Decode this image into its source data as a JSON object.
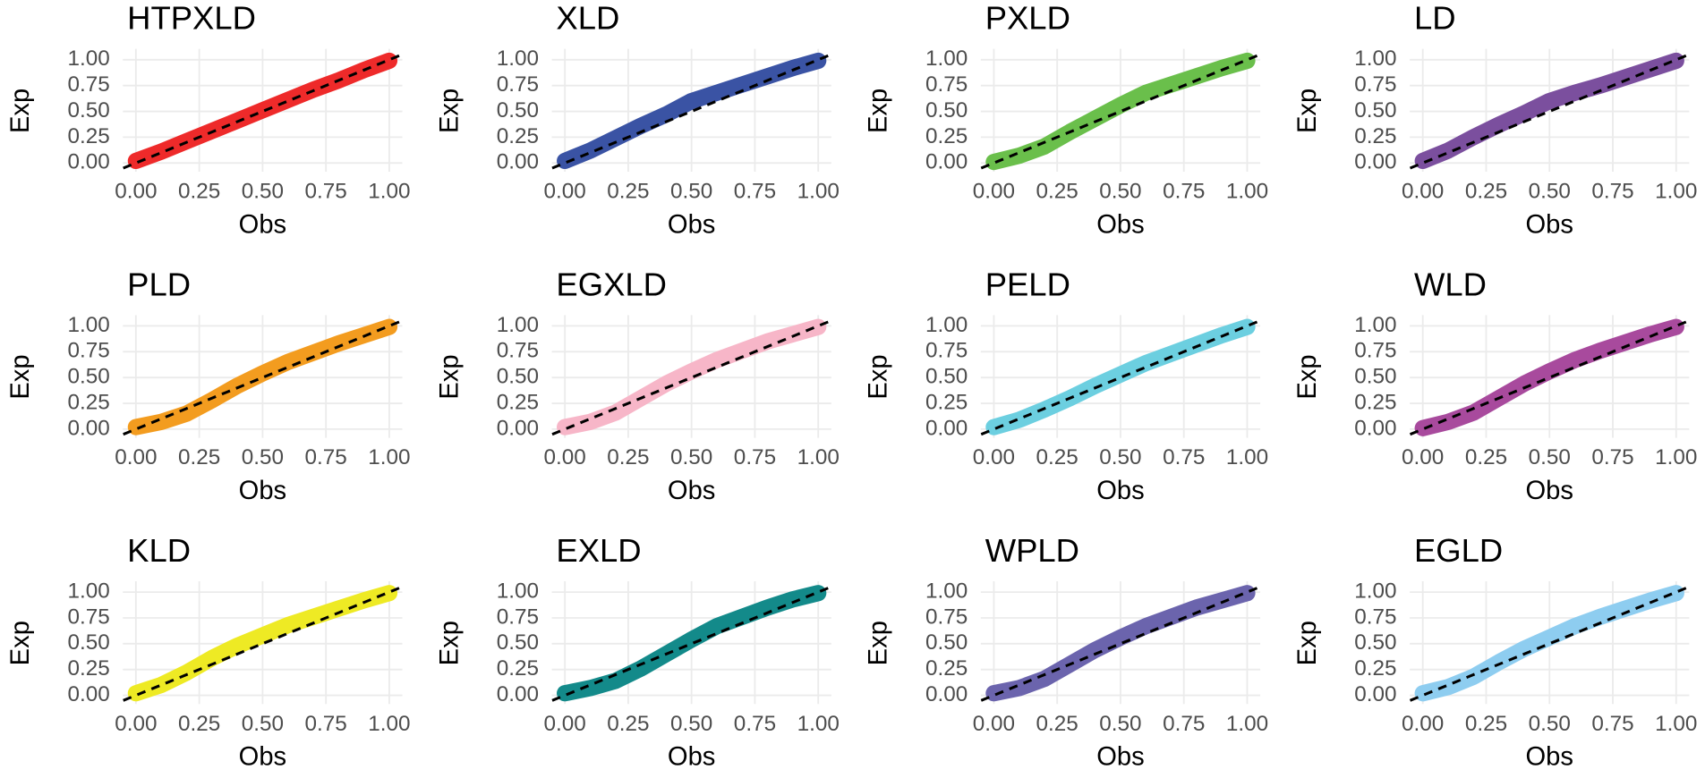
{
  "chart_data": [
    {
      "type": "line",
      "title": "HTPXLD",
      "x_label": "Obs",
      "y_label": "Exp",
      "color": "#ee2a2a",
      "x": [
        0,
        0.1,
        0.2,
        0.3,
        0.4,
        0.5,
        0.6,
        0.7,
        0.8,
        0.9,
        1
      ],
      "values": [
        0.02,
        0.11,
        0.21,
        0.31,
        0.41,
        0.51,
        0.61,
        0.71,
        0.8,
        0.9,
        0.99
      ],
      "xlim": [
        0,
        1
      ],
      "ylim": [
        0,
        1
      ],
      "xticks": [
        {
          "value": 0,
          "label": "0.00"
        },
        {
          "value": 0.25,
          "label": "0.25"
        },
        {
          "value": 0.5,
          "label": "0.50"
        },
        {
          "value": 0.75,
          "label": "0.75"
        },
        {
          "value": 1,
          "label": "1.00"
        }
      ],
      "yticks": [
        {
          "value": 0,
          "label": "0.00"
        },
        {
          "value": 0.25,
          "label": "0.25"
        },
        {
          "value": 0.5,
          "label": "0.50"
        },
        {
          "value": 0.75,
          "label": "0.75"
        },
        {
          "value": 1,
          "label": "1.00"
        }
      ],
      "grid": true
    },
    {
      "type": "line",
      "title": "XLD",
      "x_label": "Obs",
      "y_label": "Exp",
      "color": "#3a53a4",
      "x": [
        0,
        0.1,
        0.2,
        0.3,
        0.4,
        0.5,
        0.6,
        0.7,
        0.8,
        0.9,
        1
      ],
      "values": [
        0.02,
        0.12,
        0.24,
        0.36,
        0.47,
        0.6,
        0.68,
        0.76,
        0.84,
        0.92,
        0.99
      ],
      "xlim": [
        0,
        1
      ],
      "ylim": [
        0,
        1
      ],
      "xticks": [
        {
          "value": 0,
          "label": "0.00"
        },
        {
          "value": 0.25,
          "label": "0.25"
        },
        {
          "value": 0.5,
          "label": "0.50"
        },
        {
          "value": 0.75,
          "label": "0.75"
        },
        {
          "value": 1,
          "label": "1.00"
        }
      ],
      "yticks": [
        {
          "value": 0,
          "label": "0.00"
        },
        {
          "value": 0.25,
          "label": "0.25"
        },
        {
          "value": 0.5,
          "label": "0.50"
        },
        {
          "value": 0.75,
          "label": "0.75"
        },
        {
          "value": 1,
          "label": "1.00"
        }
      ],
      "grid": true
    },
    {
      "type": "line",
      "title": "PXLD",
      "x_label": "Obs",
      "y_label": "Exp",
      "color": "#6abf4b",
      "x": [
        0,
        0.1,
        0.2,
        0.3,
        0.4,
        0.5,
        0.6,
        0.7,
        0.8,
        0.9,
        1
      ],
      "values": [
        0.01,
        0.07,
        0.16,
        0.3,
        0.43,
        0.56,
        0.68,
        0.76,
        0.84,
        0.92,
        0.99
      ],
      "xlim": [
        0,
        1
      ],
      "ylim": [
        0,
        1
      ],
      "xticks": [
        {
          "value": 0,
          "label": "0.00"
        },
        {
          "value": 0.25,
          "label": "0.25"
        },
        {
          "value": 0.5,
          "label": "0.50"
        },
        {
          "value": 0.75,
          "label": "0.75"
        },
        {
          "value": 1,
          "label": "1.00"
        }
      ],
      "yticks": [
        {
          "value": 0,
          "label": "0.00"
        },
        {
          "value": 0.25,
          "label": "0.25"
        },
        {
          "value": 0.5,
          "label": "0.50"
        },
        {
          "value": 0.75,
          "label": "0.75"
        },
        {
          "value": 1,
          "label": "1.00"
        }
      ],
      "grid": true
    },
    {
      "type": "line",
      "title": "LD",
      "x_label": "Obs",
      "y_label": "Exp",
      "color": "#7b4f9e",
      "x": [
        0,
        0.1,
        0.2,
        0.3,
        0.4,
        0.5,
        0.6,
        0.7,
        0.8,
        0.9,
        1
      ],
      "values": [
        0.02,
        0.12,
        0.25,
        0.37,
        0.48,
        0.6,
        0.68,
        0.75,
        0.83,
        0.91,
        0.99
      ],
      "xlim": [
        0,
        1
      ],
      "ylim": [
        0,
        1
      ],
      "xticks": [
        {
          "value": 0,
          "label": "0.00"
        },
        {
          "value": 0.25,
          "label": "0.25"
        },
        {
          "value": 0.5,
          "label": "0.50"
        },
        {
          "value": 0.75,
          "label": "0.75"
        },
        {
          "value": 1,
          "label": "1.00"
        }
      ],
      "yticks": [
        {
          "value": 0,
          "label": "0.00"
        },
        {
          "value": 0.25,
          "label": "0.25"
        },
        {
          "value": 0.5,
          "label": "0.50"
        },
        {
          "value": 0.75,
          "label": "0.75"
        },
        {
          "value": 1,
          "label": "1.00"
        }
      ],
      "grid": true
    },
    {
      "type": "line",
      "title": "PLD",
      "x_label": "Obs",
      "y_label": "Exp",
      "color": "#f39c1f",
      "x": [
        0,
        0.1,
        0.2,
        0.3,
        0.4,
        0.5,
        0.6,
        0.7,
        0.8,
        0.9,
        1
      ],
      "values": [
        0.02,
        0.07,
        0.15,
        0.28,
        0.42,
        0.54,
        0.65,
        0.74,
        0.83,
        0.91,
        0.99
      ],
      "xlim": [
        0,
        1
      ],
      "ylim": [
        0,
        1
      ],
      "xticks": [
        {
          "value": 0,
          "label": "0.00"
        },
        {
          "value": 0.25,
          "label": "0.25"
        },
        {
          "value": 0.5,
          "label": "0.50"
        },
        {
          "value": 0.75,
          "label": "0.75"
        },
        {
          "value": 1,
          "label": "1.00"
        }
      ],
      "yticks": [
        {
          "value": 0,
          "label": "0.00"
        },
        {
          "value": 0.25,
          "label": "0.25"
        },
        {
          "value": 0.5,
          "label": "0.50"
        },
        {
          "value": 0.75,
          "label": "0.75"
        },
        {
          "value": 1,
          "label": "1.00"
        }
      ],
      "grid": true
    },
    {
      "type": "line",
      "title": "EGXLD",
      "x_label": "Obs",
      "y_label": "Exp",
      "color": "#f7b6c8",
      "x": [
        0,
        0.1,
        0.2,
        0.3,
        0.4,
        0.5,
        0.6,
        0.7,
        0.8,
        0.9,
        1
      ],
      "values": [
        0.02,
        0.07,
        0.16,
        0.3,
        0.44,
        0.56,
        0.67,
        0.76,
        0.85,
        0.92,
        0.99
      ],
      "xlim": [
        0,
        1
      ],
      "ylim": [
        0,
        1
      ],
      "xticks": [
        {
          "value": 0,
          "label": "0.00"
        },
        {
          "value": 0.25,
          "label": "0.25"
        },
        {
          "value": 0.5,
          "label": "0.50"
        },
        {
          "value": 0.75,
          "label": "0.75"
        },
        {
          "value": 1,
          "label": "1.00"
        }
      ],
      "yticks": [
        {
          "value": 0,
          "label": "0.00"
        },
        {
          "value": 0.25,
          "label": "0.25"
        },
        {
          "value": 0.5,
          "label": "0.50"
        },
        {
          "value": 0.75,
          "label": "0.75"
        },
        {
          "value": 1,
          "label": "1.00"
        }
      ],
      "grid": true
    },
    {
      "type": "line",
      "title": "PELD",
      "x_label": "Obs",
      "y_label": "Exp",
      "color": "#6ccfe0",
      "x": [
        0,
        0.1,
        0.2,
        0.3,
        0.4,
        0.5,
        0.6,
        0.7,
        0.8,
        0.9,
        1
      ],
      "values": [
        0.02,
        0.09,
        0.19,
        0.3,
        0.42,
        0.53,
        0.64,
        0.73,
        0.82,
        0.91,
        0.99
      ],
      "xlim": [
        0,
        1
      ],
      "ylim": [
        0,
        1
      ],
      "xticks": [
        {
          "value": 0,
          "label": "0.00"
        },
        {
          "value": 0.25,
          "label": "0.25"
        },
        {
          "value": 0.5,
          "label": "0.50"
        },
        {
          "value": 0.75,
          "label": "0.75"
        },
        {
          "value": 1,
          "label": "1.00"
        }
      ],
      "yticks": [
        {
          "value": 0,
          "label": "0.00"
        },
        {
          "value": 0.25,
          "label": "0.25"
        },
        {
          "value": 0.5,
          "label": "0.50"
        },
        {
          "value": 0.75,
          "label": "0.75"
        },
        {
          "value": 1,
          "label": "1.00"
        }
      ],
      "grid": true
    },
    {
      "type": "line",
      "title": "WLD",
      "x_label": "Obs",
      "y_label": "Exp",
      "color": "#a84a9d",
      "x": [
        0,
        0.1,
        0.2,
        0.3,
        0.4,
        0.5,
        0.6,
        0.7,
        0.8,
        0.9,
        1
      ],
      "values": [
        0.01,
        0.07,
        0.16,
        0.3,
        0.44,
        0.56,
        0.67,
        0.76,
        0.84,
        0.92,
        0.99
      ],
      "xlim": [
        0,
        1
      ],
      "ylim": [
        0,
        1
      ],
      "xticks": [
        {
          "value": 0,
          "label": "0.00"
        },
        {
          "value": 0.25,
          "label": "0.25"
        },
        {
          "value": 0.5,
          "label": "0.50"
        },
        {
          "value": 0.75,
          "label": "0.75"
        },
        {
          "value": 1,
          "label": "1.00"
        }
      ],
      "yticks": [
        {
          "value": 0,
          "label": "0.00"
        },
        {
          "value": 0.25,
          "label": "0.25"
        },
        {
          "value": 0.5,
          "label": "0.50"
        },
        {
          "value": 0.75,
          "label": "0.75"
        },
        {
          "value": 1,
          "label": "1.00"
        }
      ],
      "grid": true
    },
    {
      "type": "line",
      "title": "KLD",
      "x_label": "Obs",
      "y_label": "Exp",
      "color": "#eeea24",
      "x": [
        0,
        0.1,
        0.2,
        0.3,
        0.4,
        0.5,
        0.6,
        0.7,
        0.8,
        0.9,
        1
      ],
      "values": [
        0.02,
        0.1,
        0.22,
        0.36,
        0.48,
        0.58,
        0.68,
        0.76,
        0.84,
        0.92,
        0.99
      ],
      "xlim": [
        0,
        1
      ],
      "ylim": [
        0,
        1
      ],
      "xticks": [
        {
          "value": 0,
          "label": "0.00"
        },
        {
          "value": 0.25,
          "label": "0.25"
        },
        {
          "value": 0.5,
          "label": "0.50"
        },
        {
          "value": 0.75,
          "label": "0.75"
        },
        {
          "value": 1,
          "label": "1.00"
        }
      ],
      "yticks": [
        {
          "value": 0,
          "label": "0.00"
        },
        {
          "value": 0.25,
          "label": "0.25"
        },
        {
          "value": 0.5,
          "label": "0.50"
        },
        {
          "value": 0.75,
          "label": "0.75"
        },
        {
          "value": 1,
          "label": "1.00"
        }
      ],
      "grid": true
    },
    {
      "type": "line",
      "title": "EXLD",
      "x_label": "Obs",
      "y_label": "Exp",
      "color": "#138a8a",
      "x": [
        0,
        0.1,
        0.2,
        0.3,
        0.4,
        0.5,
        0.6,
        0.7,
        0.8,
        0.9,
        1
      ],
      "values": [
        0.02,
        0.07,
        0.14,
        0.26,
        0.4,
        0.54,
        0.67,
        0.76,
        0.85,
        0.93,
        0.99
      ],
      "xlim": [
        0,
        1
      ],
      "ylim": [
        0,
        1
      ],
      "xticks": [
        {
          "value": 0,
          "label": "0.00"
        },
        {
          "value": 0.25,
          "label": "0.25"
        },
        {
          "value": 0.5,
          "label": "0.50"
        },
        {
          "value": 0.75,
          "label": "0.75"
        },
        {
          "value": 1,
          "label": "1.00"
        }
      ],
      "yticks": [
        {
          "value": 0,
          "label": "0.00"
        },
        {
          "value": 0.25,
          "label": "0.25"
        },
        {
          "value": 0.5,
          "label": "0.50"
        },
        {
          "value": 0.75,
          "label": "0.75"
        },
        {
          "value": 1,
          "label": "1.00"
        }
      ],
      "grid": true
    },
    {
      "type": "line",
      "title": "WPLD",
      "x_label": "Obs",
      "y_label": "Exp",
      "color": "#6b64ad",
      "x": [
        0,
        0.1,
        0.2,
        0.3,
        0.4,
        0.5,
        0.6,
        0.7,
        0.8,
        0.9,
        1
      ],
      "values": [
        0.02,
        0.07,
        0.16,
        0.3,
        0.44,
        0.56,
        0.67,
        0.76,
        0.85,
        0.92,
        0.99
      ],
      "xlim": [
        0,
        1
      ],
      "ylim": [
        0,
        1
      ],
      "xticks": [
        {
          "value": 0,
          "label": "0.00"
        },
        {
          "value": 0.25,
          "label": "0.25"
        },
        {
          "value": 0.5,
          "label": "0.50"
        },
        {
          "value": 0.75,
          "label": "0.75"
        },
        {
          "value": 1,
          "label": "1.00"
        }
      ],
      "yticks": [
        {
          "value": 0,
          "label": "0.00"
        },
        {
          "value": 0.25,
          "label": "0.25"
        },
        {
          "value": 0.5,
          "label": "0.50"
        },
        {
          "value": 0.75,
          "label": "0.75"
        },
        {
          "value": 1,
          "label": "1.00"
        }
      ],
      "grid": true
    },
    {
      "type": "line",
      "title": "EGLD",
      "x_label": "Obs",
      "y_label": "Exp",
      "color": "#8ecdf0",
      "x": [
        0,
        0.1,
        0.2,
        0.3,
        0.4,
        0.5,
        0.6,
        0.7,
        0.8,
        0.9,
        1
      ],
      "values": [
        0.02,
        0.08,
        0.18,
        0.32,
        0.45,
        0.56,
        0.67,
        0.76,
        0.84,
        0.92,
        0.99
      ],
      "xlim": [
        0,
        1
      ],
      "ylim": [
        0,
        1
      ],
      "xticks": [
        {
          "value": 0,
          "label": "0.00"
        },
        {
          "value": 0.25,
          "label": "0.25"
        },
        {
          "value": 0.5,
          "label": "0.50"
        },
        {
          "value": 0.75,
          "label": "0.75"
        },
        {
          "value": 1,
          "label": "1.00"
        }
      ],
      "yticks": [
        {
          "value": 0,
          "label": "0.00"
        },
        {
          "value": 0.25,
          "label": "0.25"
        },
        {
          "value": 0.5,
          "label": "0.50"
        },
        {
          "value": 0.75,
          "label": "0.75"
        },
        {
          "value": 1,
          "label": "1.00"
        }
      ],
      "grid": true
    }
  ]
}
